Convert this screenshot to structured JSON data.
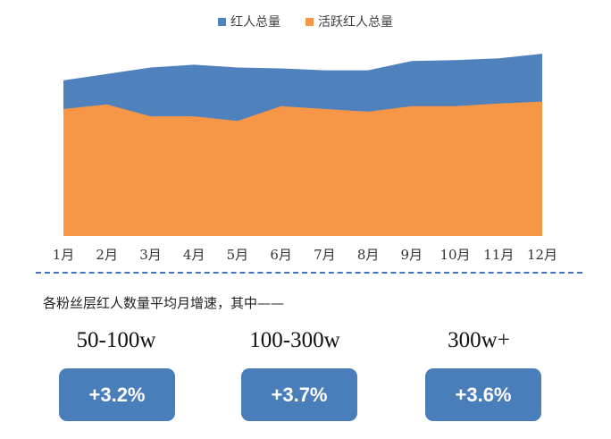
{
  "legend": {
    "series_total": "红人总量",
    "series_active": "活跃红人总量",
    "color_total": "#4f81bd",
    "color_active": "#f79646"
  },
  "chart_data": {
    "type": "area",
    "categories": [
      "1月",
      "2月",
      "3月",
      "4月",
      "5月",
      "6月",
      "7月",
      "8月",
      "9月",
      "10月",
      "11月",
      "12月"
    ],
    "series": [
      {
        "name": "红人总量",
        "values": [
          169,
          176,
          183,
          186,
          183,
          182,
          180,
          180,
          190,
          191,
          193,
          198
        ]
      },
      {
        "name": "活跃红人总量",
        "values": [
          138,
          143,
          130,
          130,
          125,
          141,
          138,
          135,
          141,
          141,
          144,
          146
        ]
      }
    ],
    "ylim": [
      0,
      200
    ],
    "grid": false,
    "legend_position": "top-center"
  },
  "caption": "各粉丝层红人数量平均月增速，其中——",
  "tiers": [
    {
      "label": "50-100w",
      "growth": "+3.2%"
    },
    {
      "label": "100-300w",
      "growth": "+3.7%"
    },
    {
      "label": "300w+",
      "growth": "+3.6%"
    }
  ]
}
